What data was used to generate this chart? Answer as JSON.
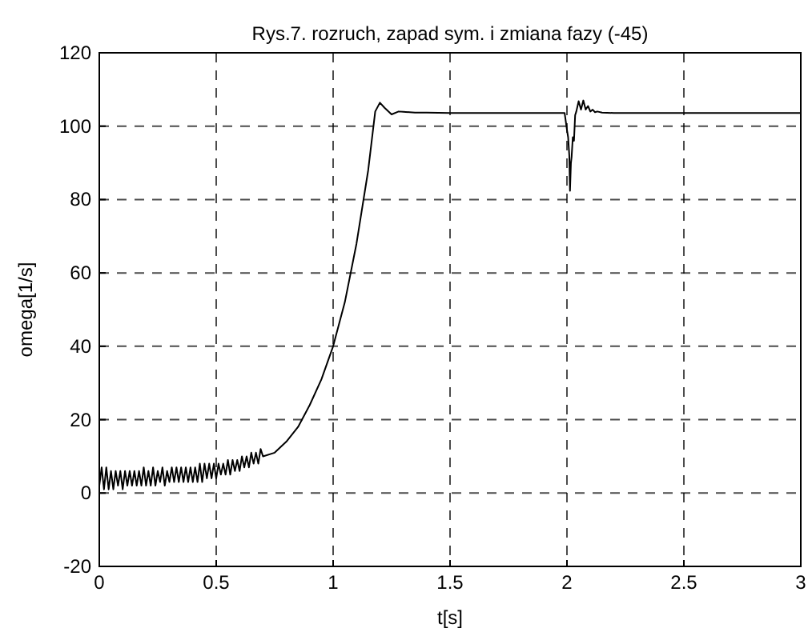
{
  "chart_data": {
    "type": "line",
    "title": "Rys.7. rozruch, zapad sym. i zmiana fazy (-45)",
    "xlabel": "t[s]",
    "ylabel": "omega[1/s]",
    "xlim": [
      0,
      3
    ],
    "ylim": [
      -20,
      120
    ],
    "xticks": [
      0,
      0.5,
      1,
      1.5,
      2,
      2.5,
      3
    ],
    "yticks": [
      -20,
      0,
      20,
      40,
      60,
      80,
      100,
      120
    ],
    "grid": true,
    "marker": "none",
    "line_style": "solid",
    "series": [
      {
        "color": "#000000",
        "x": [
          0,
          0.01,
          0.02,
          0.03,
          0.04,
          0.05,
          0.06,
          0.07,
          0.08,
          0.09,
          0.1,
          0.11,
          0.12,
          0.13,
          0.14,
          0.15,
          0.16,
          0.17,
          0.18,
          0.19,
          0.2,
          0.21,
          0.22,
          0.23,
          0.24,
          0.25,
          0.26,
          0.27,
          0.28,
          0.29,
          0.3,
          0.31,
          0.32,
          0.33,
          0.34,
          0.35,
          0.36,
          0.37,
          0.38,
          0.39,
          0.4,
          0.41,
          0.42,
          0.43,
          0.44,
          0.45,
          0.46,
          0.47,
          0.48,
          0.49,
          0.5,
          0.51,
          0.52,
          0.53,
          0.54,
          0.55,
          0.56,
          0.57,
          0.58,
          0.59,
          0.6,
          0.61,
          0.62,
          0.63,
          0.64,
          0.65,
          0.66,
          0.67,
          0.68,
          0.69,
          0.7,
          0.75,
          0.8,
          0.85,
          0.9,
          0.95,
          1.0,
          1.05,
          1.1,
          1.15,
          1.18,
          1.2,
          1.22,
          1.25,
          1.28,
          1.3,
          1.35,
          1.4,
          1.5,
          1.9,
          1.99,
          2.0,
          2.005,
          2.01,
          2.013,
          2.017,
          2.02,
          2.025,
          2.03,
          2.035,
          2.04,
          2.05,
          2.06,
          2.07,
          2.08,
          2.09,
          2.1,
          2.11,
          2.12,
          2.13,
          2.15,
          2.2,
          2.5,
          3.0
        ],
        "values": [
          2,
          7,
          1,
          7,
          1,
          6,
          1,
          6,
          2,
          6,
          1,
          6,
          2,
          6,
          2,
          6,
          2,
          6,
          2,
          7,
          2,
          6,
          2,
          7,
          2,
          6,
          3,
          7,
          2,
          6,
          3,
          7,
          3,
          7,
          3,
          7,
          3,
          7,
          3,
          7,
          3,
          7,
          3,
          8,
          3,
          8,
          4,
          8,
          4,
          8,
          4,
          8,
          5,
          8,
          5,
          9,
          5,
          9,
          6,
          9,
          6,
          10,
          7,
          10,
          7,
          11,
          8,
          11,
          8,
          12,
          10,
          11,
          14,
          18,
          24,
          31,
          40,
          52,
          68,
          88,
          104,
          106.4,
          105,
          103.2,
          104,
          103.9,
          103.7,
          103.7,
          103.6,
          103.6,
          103.6,
          99,
          97,
          92,
          82.4,
          90,
          91.7,
          97,
          96,
          103,
          104,
          106.8,
          104.5,
          107,
          104.5,
          105.5,
          104,
          104.5,
          103.8,
          104,
          103.7,
          103.6,
          103.6,
          103.6
        ]
      }
    ]
  }
}
